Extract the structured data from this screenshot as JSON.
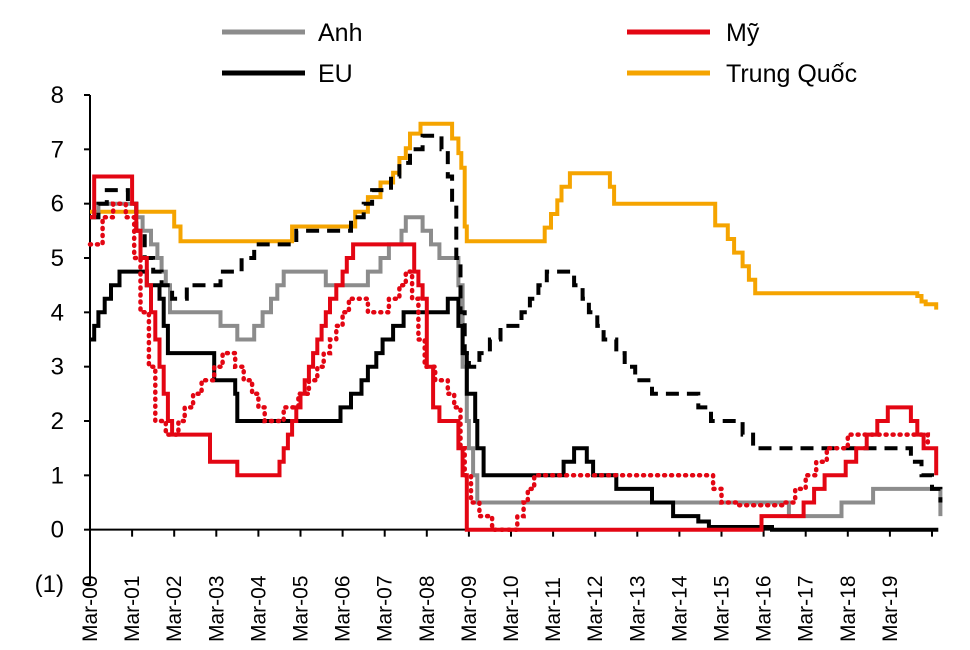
{
  "chart_data": {
    "type": "line",
    "title": "",
    "xlabel": "",
    "ylabel": "",
    "ylim": [
      -1,
      8
    ],
    "grid": false,
    "legend_position": "top",
    "y_ticks": [
      "8",
      "7",
      "6",
      "5",
      "4",
      "3",
      "2",
      "1",
      "0",
      "(1)"
    ],
    "y_tick_values": [
      8,
      7,
      6,
      5,
      4,
      3,
      2,
      1,
      0,
      -1
    ],
    "x_ticks": [
      "Mar-00",
      "Mar-01",
      "Mar-02",
      "Mar-03",
      "Mar-04",
      "Mar-05",
      "Mar-06",
      "Mar-07",
      "Mar-08",
      "Mar-09",
      "Mar-10",
      "Mar-11",
      "Mar-12",
      "Mar-13",
      "Mar-14",
      "Mar-15",
      "Mar-16",
      "Mar-17",
      "Mar-18",
      "Mar-19"
    ],
    "x_start_year": 2000.0,
    "x_end_year": 2020.0,
    "series": [
      {
        "name": "Anh",
        "color": "#8c8c8c",
        "style": "solid",
        "legend": true,
        "points": [
          [
            2000.0,
            5.75
          ],
          [
            2000.2,
            6.0
          ],
          [
            2000.9,
            6.0
          ],
          [
            2001.1,
            5.75
          ],
          [
            2001.25,
            5.5
          ],
          [
            2001.45,
            5.25
          ],
          [
            2001.6,
            5.0
          ],
          [
            2001.7,
            4.75
          ],
          [
            2001.8,
            4.5
          ],
          [
            2001.9,
            4.0
          ],
          [
            2003.1,
            3.75
          ],
          [
            2003.5,
            3.5
          ],
          [
            2003.9,
            3.75
          ],
          [
            2004.1,
            4.0
          ],
          [
            2004.3,
            4.25
          ],
          [
            2004.45,
            4.5
          ],
          [
            2004.6,
            4.75
          ],
          [
            2005.6,
            4.5
          ],
          [
            2006.6,
            4.75
          ],
          [
            2006.9,
            5.0
          ],
          [
            2007.1,
            5.25
          ],
          [
            2007.4,
            5.5
          ],
          [
            2007.5,
            5.75
          ],
          [
            2007.9,
            5.5
          ],
          [
            2008.1,
            5.25
          ],
          [
            2008.3,
            5.0
          ],
          [
            2008.75,
            4.5
          ],
          [
            2008.85,
            3.0
          ],
          [
            2008.95,
            2.0
          ],
          [
            2009.0,
            1.5
          ],
          [
            2009.1,
            1.0
          ],
          [
            2009.2,
            0.5
          ],
          [
            2016.6,
            0.25
          ],
          [
            2017.85,
            0.5
          ],
          [
            2018.6,
            0.75
          ],
          [
            2019.95,
            0.75
          ],
          [
            2020.2,
            0.25
          ]
        ]
      },
      {
        "name": "Mỹ",
        "color": "#e30613",
        "style": "solid",
        "legend": true,
        "points": [
          [
            2000.0,
            5.75
          ],
          [
            2000.1,
            6.5
          ],
          [
            2000.8,
            6.5
          ],
          [
            2001.0,
            6.0
          ],
          [
            2001.1,
            5.5
          ],
          [
            2001.2,
            5.0
          ],
          [
            2001.35,
            4.5
          ],
          [
            2001.45,
            4.0
          ],
          [
            2001.55,
            3.5
          ],
          [
            2001.65,
            3.0
          ],
          [
            2001.75,
            2.5
          ],
          [
            2001.85,
            2.0
          ],
          [
            2001.95,
            1.75
          ],
          [
            2002.85,
            1.25
          ],
          [
            2003.5,
            1.0
          ],
          [
            2004.5,
            1.25
          ],
          [
            2004.6,
            1.5
          ],
          [
            2004.7,
            1.75
          ],
          [
            2004.8,
            2.0
          ],
          [
            2004.9,
            2.25
          ],
          [
            2005.0,
            2.5
          ],
          [
            2005.1,
            2.75
          ],
          [
            2005.2,
            3.0
          ],
          [
            2005.3,
            3.25
          ],
          [
            2005.4,
            3.5
          ],
          [
            2005.5,
            3.75
          ],
          [
            2005.6,
            4.0
          ],
          [
            2005.7,
            4.25
          ],
          [
            2005.85,
            4.5
          ],
          [
            2006.0,
            4.75
          ],
          [
            2006.1,
            5.0
          ],
          [
            2006.25,
            5.25
          ],
          [
            2007.7,
            4.75
          ],
          [
            2007.8,
            4.5
          ],
          [
            2007.9,
            4.25
          ],
          [
            2008.0,
            3.0
          ],
          [
            2008.15,
            2.25
          ],
          [
            2008.3,
            2.0
          ],
          [
            2008.75,
            1.5
          ],
          [
            2008.85,
            1.0
          ],
          [
            2008.95,
            0.0
          ],
          [
            2015.95,
            0.25
          ],
          [
            2016.95,
            0.5
          ],
          [
            2017.2,
            0.75
          ],
          [
            2017.45,
            1.0
          ],
          [
            2017.95,
            1.25
          ],
          [
            2018.2,
            1.5
          ],
          [
            2018.45,
            1.75
          ],
          [
            2018.7,
            2.0
          ],
          [
            2018.95,
            2.25
          ],
          [
            2019.5,
            2.0
          ],
          [
            2019.65,
            1.75
          ],
          [
            2019.8,
            1.5
          ],
          [
            2020.1,
            1.0
          ]
        ]
      },
      {
        "name": "EU",
        "color": "#000000",
        "style": "solid",
        "legend": true,
        "points": [
          [
            2000.0,
            3.5
          ],
          [
            2000.1,
            3.75
          ],
          [
            2000.2,
            4.0
          ],
          [
            2000.35,
            4.25
          ],
          [
            2000.5,
            4.5
          ],
          [
            2000.7,
            4.75
          ],
          [
            2001.35,
            4.5
          ],
          [
            2001.65,
            4.25
          ],
          [
            2001.75,
            3.75
          ],
          [
            2001.85,
            3.25
          ],
          [
            2002.95,
            2.75
          ],
          [
            2003.45,
            2.5
          ],
          [
            2003.5,
            2.0
          ],
          [
            2005.95,
            2.25
          ],
          [
            2006.2,
            2.5
          ],
          [
            2006.45,
            2.75
          ],
          [
            2006.6,
            3.0
          ],
          [
            2006.8,
            3.25
          ],
          [
            2006.95,
            3.5
          ],
          [
            2007.2,
            3.75
          ],
          [
            2007.45,
            4.0
          ],
          [
            2008.5,
            4.25
          ],
          [
            2008.75,
            3.75
          ],
          [
            2008.85,
            3.25
          ],
          [
            2008.95,
            2.5
          ],
          [
            2009.15,
            2.0
          ],
          [
            2009.2,
            1.5
          ],
          [
            2009.35,
            1.0
          ],
          [
            2011.25,
            1.25
          ],
          [
            2011.5,
            1.5
          ],
          [
            2011.8,
            1.25
          ],
          [
            2011.95,
            1.0
          ],
          [
            2012.5,
            0.75
          ],
          [
            2013.35,
            0.5
          ],
          [
            2013.85,
            0.25
          ],
          [
            2014.45,
            0.15
          ],
          [
            2014.7,
            0.05
          ],
          [
            2016.2,
            0.0
          ],
          [
            2020.15,
            0.0
          ]
        ]
      },
      {
        "name": "Trung Quốc",
        "color": "#f5a400",
        "style": "solid",
        "legend": true,
        "points": [
          [
            2000.0,
            5.85
          ],
          [
            2002.0,
            5.58
          ],
          [
            2002.15,
            5.31
          ],
          [
            2004.8,
            5.58
          ],
          [
            2006.3,
            5.85
          ],
          [
            2006.6,
            6.12
          ],
          [
            2006.9,
            6.39
          ],
          [
            2007.2,
            6.57
          ],
          [
            2007.35,
            6.84
          ],
          [
            2007.5,
            7.02
          ],
          [
            2007.6,
            7.29
          ],
          [
            2007.85,
            7.47
          ],
          [
            2008.6,
            7.2
          ],
          [
            2008.75,
            6.93
          ],
          [
            2008.82,
            6.66
          ],
          [
            2008.9,
            5.58
          ],
          [
            2008.95,
            5.31
          ],
          [
            2010.8,
            5.56
          ],
          [
            2010.95,
            5.81
          ],
          [
            2011.1,
            6.06
          ],
          [
            2011.2,
            6.31
          ],
          [
            2011.4,
            6.56
          ],
          [
            2012.35,
            6.31
          ],
          [
            2012.45,
            6.0
          ],
          [
            2014.85,
            5.6
          ],
          [
            2015.15,
            5.35
          ],
          [
            2015.3,
            5.1
          ],
          [
            2015.5,
            4.85
          ],
          [
            2015.65,
            4.6
          ],
          [
            2015.8,
            4.35
          ],
          [
            2019.65,
            4.3
          ],
          [
            2019.75,
            4.2
          ],
          [
            2019.85,
            4.15
          ],
          [
            2020.1,
            4.05
          ]
        ]
      },
      {
        "name": "Anh (dự báo)",
        "color": "#000000",
        "style": "dashed",
        "legend": false,
        "points": [
          [
            2000.0,
            5.75
          ],
          [
            2000.2,
            6.0
          ],
          [
            2000.4,
            6.25
          ],
          [
            2000.9,
            6.0
          ],
          [
            2001.1,
            5.5
          ],
          [
            2001.3,
            5.0
          ],
          [
            2001.5,
            4.75
          ],
          [
            2001.7,
            4.5
          ],
          [
            2001.95,
            4.25
          ],
          [
            2002.3,
            4.5
          ],
          [
            2003.1,
            4.75
          ],
          [
            2003.6,
            5.0
          ],
          [
            2003.9,
            5.25
          ],
          [
            2004.9,
            5.5
          ],
          [
            2006.2,
            5.75
          ],
          [
            2006.5,
            6.0
          ],
          [
            2006.7,
            6.25
          ],
          [
            2007.15,
            6.5
          ],
          [
            2007.35,
            6.75
          ],
          [
            2007.6,
            7.0
          ],
          [
            2007.9,
            7.25
          ],
          [
            2008.35,
            7.0
          ],
          [
            2008.5,
            6.5
          ],
          [
            2008.6,
            6.0
          ],
          [
            2008.7,
            5.0
          ],
          [
            2008.8,
            4.0
          ],
          [
            2008.9,
            3.25
          ],
          [
            2009.0,
            3.0
          ],
          [
            2009.25,
            3.25
          ],
          [
            2009.5,
            3.5
          ],
          [
            2009.75,
            3.75
          ],
          [
            2010.25,
            4.0
          ],
          [
            2010.45,
            4.25
          ],
          [
            2010.65,
            4.5
          ],
          [
            2010.85,
            4.75
          ],
          [
            2011.5,
            4.5
          ],
          [
            2011.7,
            4.25
          ],
          [
            2011.85,
            4.0
          ],
          [
            2012.05,
            3.75
          ],
          [
            2012.2,
            3.5
          ],
          [
            2012.5,
            3.25
          ],
          [
            2012.7,
            3.0
          ],
          [
            2012.95,
            2.75
          ],
          [
            2013.35,
            2.5
          ],
          [
            2014.45,
            2.25
          ],
          [
            2014.75,
            2.0
          ],
          [
            2015.5,
            1.75
          ],
          [
            2015.75,
            1.5
          ],
          [
            2019.5,
            1.25
          ],
          [
            2019.75,
            1.0
          ],
          [
            2020.0,
            0.75
          ],
          [
            2020.2,
            0.5
          ]
        ]
      },
      {
        "name": "Mỹ (dự báo)",
        "color": "#e30613",
        "style": "dotted",
        "legend": false,
        "points": [
          [
            2000.0,
            5.25
          ],
          [
            2000.3,
            5.75
          ],
          [
            2000.55,
            6.0
          ],
          [
            2000.85,
            5.75
          ],
          [
            2001.05,
            5.0
          ],
          [
            2001.2,
            4.0
          ],
          [
            2001.4,
            3.0
          ],
          [
            2001.55,
            2.0
          ],
          [
            2001.8,
            1.75
          ],
          [
            2002.1,
            2.0
          ],
          [
            2002.25,
            2.25
          ],
          [
            2002.45,
            2.5
          ],
          [
            2002.65,
            2.75
          ],
          [
            2002.95,
            3.0
          ],
          [
            2003.15,
            3.25
          ],
          [
            2003.45,
            3.0
          ],
          [
            2003.65,
            2.75
          ],
          [
            2003.85,
            2.5
          ],
          [
            2004.0,
            2.25
          ],
          [
            2004.15,
            2.0
          ],
          [
            2004.6,
            2.25
          ],
          [
            2004.95,
            2.5
          ],
          [
            2005.2,
            2.75
          ],
          [
            2005.4,
            3.0
          ],
          [
            2005.55,
            3.25
          ],
          [
            2005.7,
            3.5
          ],
          [
            2005.85,
            3.75
          ],
          [
            2006.0,
            4.0
          ],
          [
            2006.15,
            4.25
          ],
          [
            2006.6,
            4.0
          ],
          [
            2007.1,
            4.25
          ],
          [
            2007.35,
            4.5
          ],
          [
            2007.5,
            4.75
          ],
          [
            2007.65,
            4.25
          ],
          [
            2007.8,
            3.5
          ],
          [
            2007.95,
            3.0
          ],
          [
            2008.2,
            2.75
          ],
          [
            2008.5,
            2.5
          ],
          [
            2008.65,
            2.25
          ],
          [
            2008.8,
            1.5
          ],
          [
            2008.9,
            1.0
          ],
          [
            2009.05,
            0.5
          ],
          [
            2009.25,
            0.25
          ],
          [
            2009.55,
            0.0
          ],
          [
            2010.15,
            0.25
          ],
          [
            2010.3,
            0.5
          ],
          [
            2010.4,
            0.75
          ],
          [
            2010.55,
            1.0
          ],
          [
            2014.8,
            0.75
          ],
          [
            2015.0,
            0.5
          ],
          [
            2015.35,
            0.45
          ],
          [
            2016.5,
            0.5
          ],
          [
            2016.75,
            0.75
          ],
          [
            2017.0,
            1.0
          ],
          [
            2017.25,
            1.25
          ],
          [
            2017.5,
            1.5
          ],
          [
            2018.0,
            1.75
          ],
          [
            2019.5,
            1.75
          ],
          [
            2019.9,
            1.6
          ]
        ]
      }
    ]
  }
}
